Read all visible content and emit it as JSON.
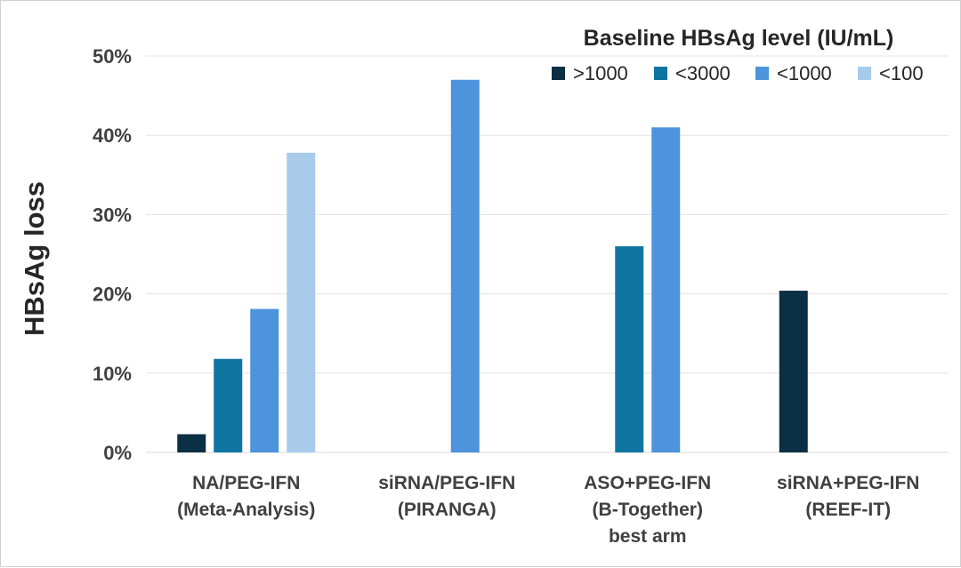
{
  "chart_data": {
    "type": "bar",
    "title": "",
    "ylabel": "HBsAg loss",
    "xlabel": "",
    "ylim": [
      0,
      50
    ],
    "yticks": [
      0,
      10,
      20,
      30,
      40,
      50
    ],
    "ytick_labels": [
      "0%",
      "10%",
      "20%",
      "30%",
      "40%",
      "50%"
    ],
    "grid": true,
    "legend": {
      "title": "Baseline HBsAg level (IU/mL)",
      "position": "top-right",
      "entries": [
        ">1000",
        "<3000",
        "<1000",
        "<100"
      ]
    },
    "categories": [
      [
        "NA/PEG-IFN",
        "(Meta-Analysis)"
      ],
      [
        "siRNA/PEG-IFN",
        "(PIRANGA)"
      ],
      [
        "ASO+PEG-IFN",
        "(B-Together)",
        "best arm"
      ],
      [
        "siRNA+PEG-IFN",
        "(REEF-IT)"
      ]
    ],
    "series": [
      {
        "name": ">1000",
        "color": "#0b2f44",
        "values": [
          2.3,
          null,
          null,
          20.4
        ]
      },
      {
        "name": "<3000",
        "color": "#0e75a1",
        "values": [
          11.8,
          null,
          26.0,
          null
        ]
      },
      {
        "name": "<1000",
        "color": "#4d94dc",
        "values": [
          18.1,
          47.0,
          41.0,
          null
        ]
      },
      {
        "name": "<100",
        "color": "#a8cbec",
        "values": [
          37.8,
          null,
          null,
          null
        ]
      }
    ]
  }
}
